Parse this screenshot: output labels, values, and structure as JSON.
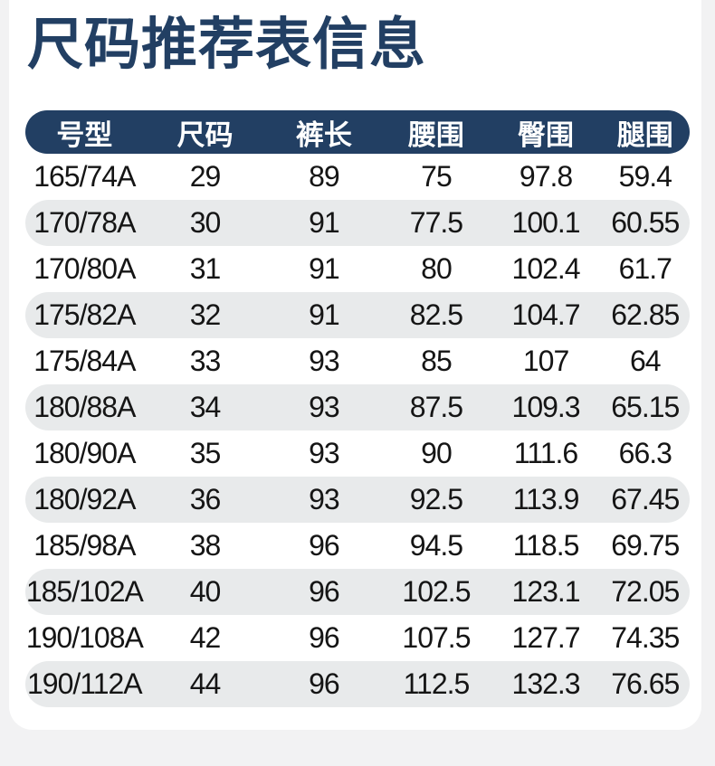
{
  "page": {
    "title": "尺码推荐表信息",
    "colors": {
      "navy": "#223f63",
      "row_alt": "#e8eaeb",
      "page_bg": "#f2f2f3",
      "card_bg": "#ffffff",
      "text_dark": "#151515",
      "header_text": "#ffffff"
    }
  },
  "chart_data": {
    "type": "table",
    "title": "尺码推荐表信息",
    "columns": [
      "号型",
      "尺码",
      "裤长",
      "腰围",
      "臀围",
      "腿围"
    ],
    "rows": [
      [
        "165/74A",
        "29",
        "89",
        "75",
        "97.8",
        "59.4"
      ],
      [
        "170/78A",
        "30",
        "91",
        "77.5",
        "100.1",
        "60.55"
      ],
      [
        "170/80A",
        "31",
        "91",
        "80",
        "102.4",
        "61.7"
      ],
      [
        "175/82A",
        "32",
        "91",
        "82.5",
        "104.7",
        "62.85"
      ],
      [
        "175/84A",
        "33",
        "93",
        "85",
        "107",
        "64"
      ],
      [
        "180/88A",
        "34",
        "93",
        "87.5",
        "109.3",
        "65.15"
      ],
      [
        "180/90A",
        "35",
        "93",
        "90",
        "111.6",
        "66.3"
      ],
      [
        "180/92A",
        "36",
        "93",
        "92.5",
        "113.9",
        "67.45"
      ],
      [
        "185/98A",
        "38",
        "96",
        "94.5",
        "118.5",
        "69.75"
      ],
      [
        "185/102A",
        "40",
        "96",
        "102.5",
        "123.1",
        "72.05"
      ],
      [
        "190/108A",
        "42",
        "96",
        "107.5",
        "127.7",
        "74.35"
      ],
      [
        "190/112A",
        "44",
        "96",
        "112.5",
        "132.3",
        "76.65"
      ]
    ],
    "layout": {
      "header_style": "navy pill, white text",
      "row_striping": "odd rows white, even rows light-gray pills",
      "alignment": "all cells centered"
    }
  }
}
